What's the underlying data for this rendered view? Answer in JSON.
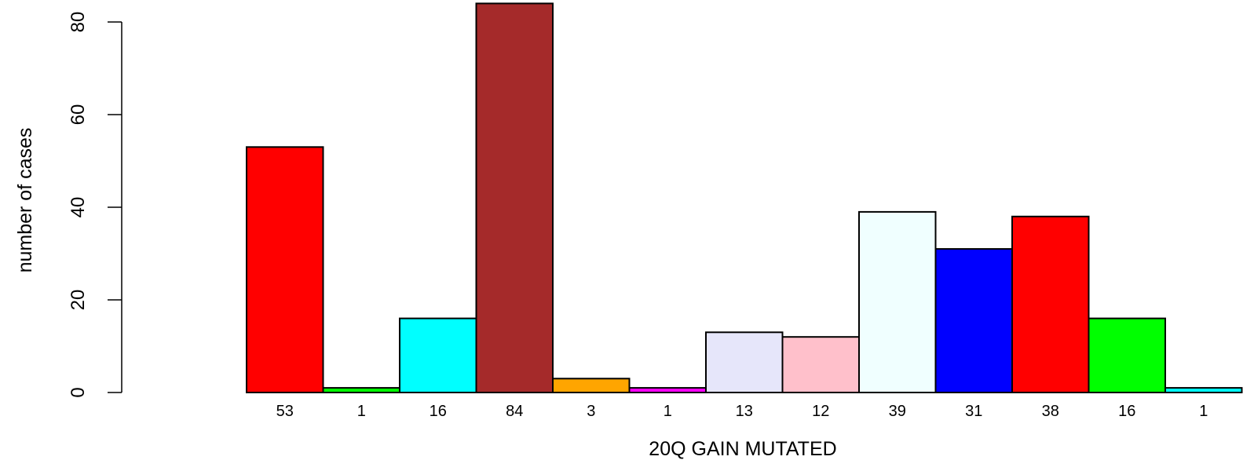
{
  "chart_data": {
    "type": "bar",
    "title": "",
    "xlabel": "20Q GAIN MUTATED",
    "ylabel": "number of cases",
    "ylim": [
      0,
      84
    ],
    "yticks": [
      0,
      20,
      40,
      60,
      80
    ],
    "grid": false,
    "categories": [
      "53",
      "1",
      "16",
      "84",
      "3",
      "1",
      "13",
      "12",
      "39",
      "31",
      "38",
      "16",
      "1"
    ],
    "values": [
      53,
      1,
      16,
      84,
      3,
      1,
      13,
      12,
      39,
      31,
      38,
      16,
      1
    ],
    "colors": [
      "#ff0000",
      "#00ff00",
      "#00ffff",
      "#a52a2a",
      "#ffa500",
      "#ff00ff",
      "#e6e6fa",
      "#ffc0cb",
      "#f0ffff",
      "#0000ff",
      "#ff0000",
      "#00ff00",
      "#00ffff"
    ]
  }
}
